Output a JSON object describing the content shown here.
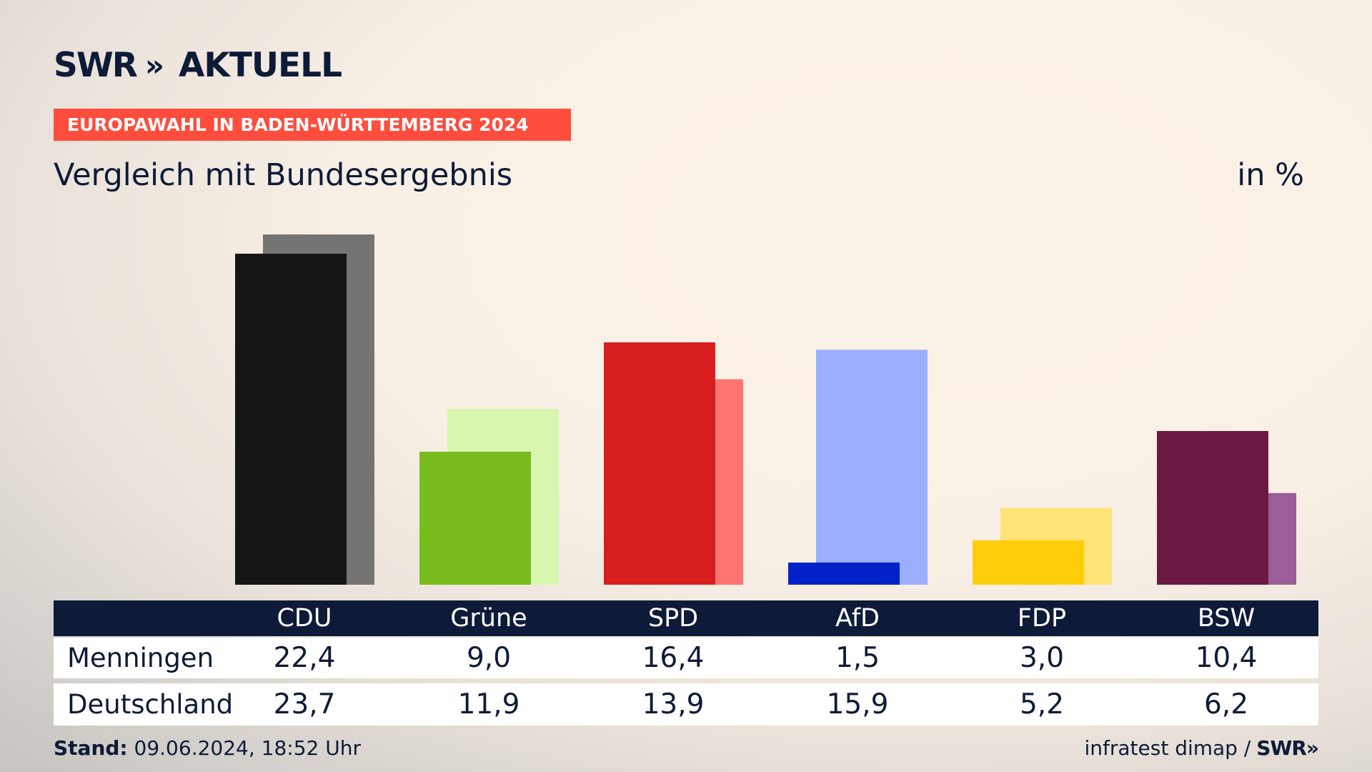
{
  "header": {
    "logo_left": "SWR",
    "logo_chevrons": "»",
    "logo_right": "AKTUELL",
    "banner": "EUROPAWAHL IN BADEN-WÜRTTEMBERG 2024",
    "subtitle": "Vergleich mit Bundesergebnis",
    "unit": "in %"
  },
  "chart_data": {
    "type": "bar",
    "title": "Vergleich mit Bundesergebnis",
    "ylabel": "in %",
    "categories": [
      "CDU",
      "Grüne",
      "SPD",
      "AfD",
      "FDP",
      "BSW"
    ],
    "series": [
      {
        "name": "Menningen",
        "values": [
          22.4,
          9.0,
          16.4,
          1.5,
          3.0,
          10.4
        ],
        "colors": [
          "#151515",
          "#78bd1d",
          "#d81e1e",
          "#0022c8",
          "#ffcd0a",
          "#6b1940"
        ]
      },
      {
        "name": "Deutschland",
        "values": [
          23.7,
          11.9,
          13.9,
          15.9,
          5.2,
          6.2
        ],
        "colors": [
          "#767472",
          "#d8f6ae",
          "#ff7370",
          "#9caeff",
          "#ffe377",
          "#9a5e98"
        ]
      }
    ],
    "ylim": [
      0,
      23.7
    ],
    "grid": false,
    "legend": "table below chart"
  },
  "table": {
    "headers": [
      "CDU",
      "Grüne",
      "SPD",
      "AfD",
      "FDP",
      "BSW"
    ],
    "rows": [
      {
        "label": "Menningen",
        "values": [
          "22,4",
          "9,0",
          "16,4",
          "1,5",
          "3,0",
          "10,4"
        ]
      },
      {
        "label": "Deutschland",
        "values": [
          "23,7",
          "11,9",
          "13,9",
          "15,9",
          "5,2",
          "6,2"
        ]
      }
    ]
  },
  "footer": {
    "stand_label": "Stand:",
    "stand_value": "09.06.2024, 18:52 Uhr",
    "source": "infratest dimap /",
    "logo": "SWR»"
  }
}
